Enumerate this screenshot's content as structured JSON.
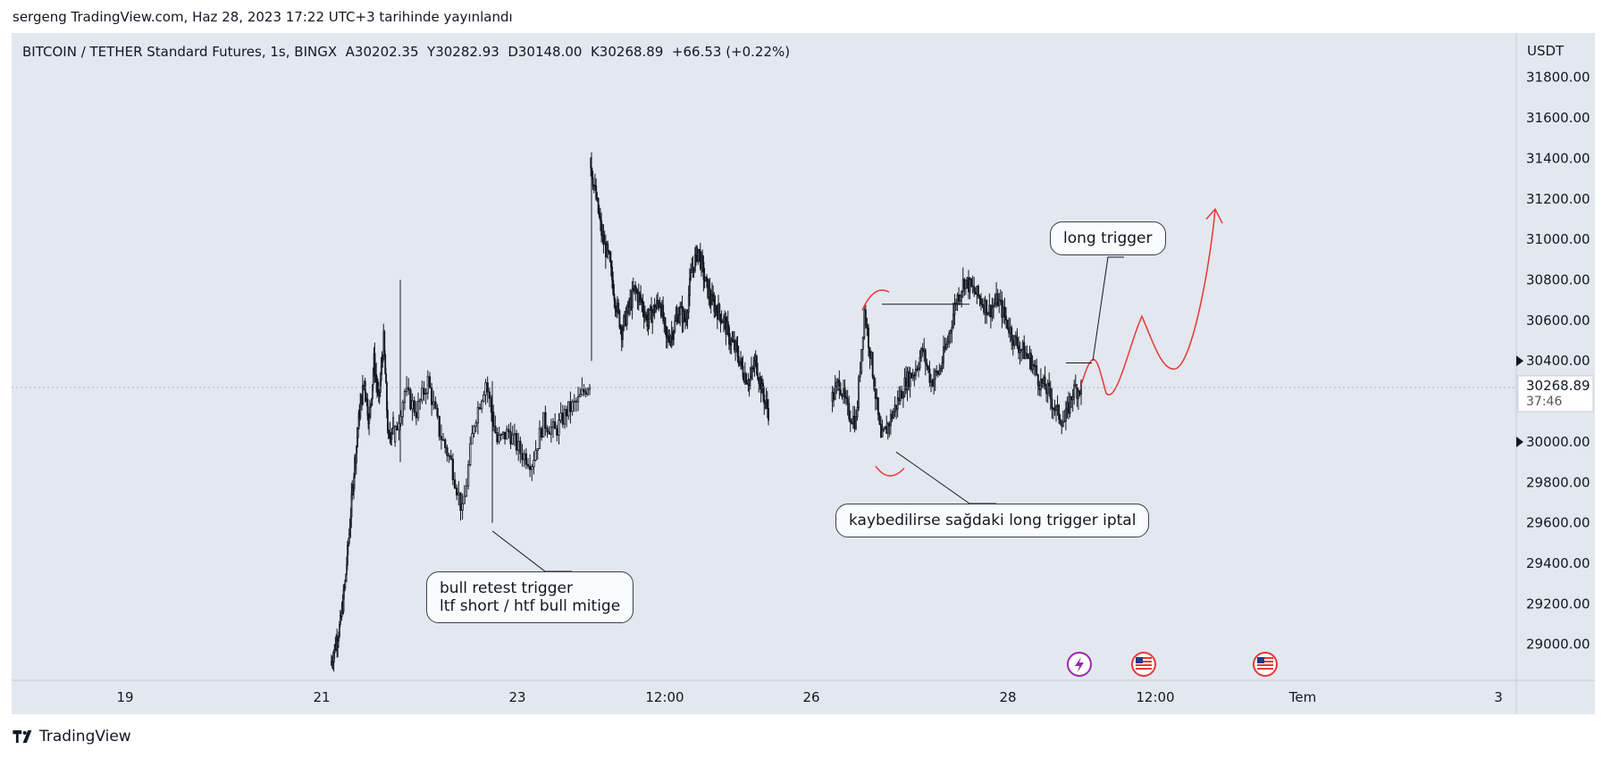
{
  "header": {
    "caption": "sergeng TradingView.com, Haz 28, 2023 17:22 UTC+3 tarihinde yayınlandı"
  },
  "symbol": {
    "title": "BITCOIN / TETHER Standard Futures, 1s, BINGX",
    "ohlc": "A30202.35  Y30282.93  D30148.00  K30268.89  +66.53 (+0.22%)"
  },
  "price_axis": {
    "currency": "USDT",
    "ticks": [
      "31800.00",
      "31600.00",
      "31400.00",
      "31200.00",
      "31000.00",
      "30800.00",
      "30600.00",
      "30400.00",
      "30000.00",
      "29800.00",
      "29600.00",
      "29400.00",
      "29200.00",
      "29000.00"
    ],
    "current_price": "30268.89",
    "countdown": "37:46"
  },
  "time_axis": {
    "labels": [
      "19",
      "21",
      "23",
      "12:00",
      "26",
      "28",
      "12:00",
      "Tem",
      "3"
    ]
  },
  "annotations": {
    "long_trigger": "long trigger",
    "lose_cancel": "kaybedilirse sağdaki long trigger iptal",
    "bull_retest_1": "bull retest trigger",
    "bull_retest_2": "ltf short / htf bull mitige"
  },
  "events": [
    {
      "icon": "lightning-icon",
      "color": "#9c27b0"
    },
    {
      "icon": "us-flag-icon",
      "color": "#e53935"
    },
    {
      "icon": "us-flag-icon",
      "color": "#e53935"
    }
  ],
  "footer": {
    "logo_text": "TradingView"
  },
  "colors": {
    "background": "#e3e7ef",
    "candle": "#131722",
    "projection": "#e53935",
    "grid": "#ffffff"
  },
  "chart_data": {
    "type": "candlestick",
    "title": "BITCOIN / TETHER Standard Futures, 1s, BINGX",
    "ylabel": "USDT",
    "ylim": [
      28840,
      31940
    ],
    "x_tick_labels": [
      "19",
      "21",
      "23",
      "12:00",
      "26",
      "28",
      "12:00",
      "Tem",
      "3"
    ],
    "last_close": 30268.89,
    "series": [
      {
        "segment": "rally_21",
        "start": "21",
        "prices": [
          28900,
          29000,
          29100,
          29300,
          29600,
          29900,
          30150,
          30300,
          30100,
          30400,
          30200,
          30500,
          30000,
          30100
        ]
      },
      {
        "segment": "range_22_23",
        "prices": [
          30000,
          30250,
          30150,
          30300,
          30050,
          29900,
          29650,
          30100,
          30300,
          30000,
          30050,
          29950,
          29900,
          30100,
          30050,
          30150,
          30200,
          30300
        ]
      },
      {
        "segment": "spike_24",
        "prices": [
          31400,
          31200,
          31000,
          30900,
          30700,
          30550,
          30650,
          30750,
          30700,
          30600,
          30650,
          30700,
          30500,
          30550,
          30650,
          30600,
          30850,
          30950,
          30800,
          30700,
          30650,
          30600,
          30500,
          30450,
          30350,
          30300,
          30400,
          30250,
          30150
        ]
      },
      {
        "segment": "range_26_27",
        "prices": [
          30200,
          30300,
          30150,
          30100,
          30650,
          30350,
          30000,
          30100,
          30200,
          30300,
          30350,
          30450,
          30300,
          30350,
          30500,
          30700,
          30800,
          30750,
          30700,
          30650,
          30700,
          30600,
          30500,
          30450,
          30400,
          30300,
          30250,
          30150,
          30100,
          30250,
          30268.89
        ]
      }
    ],
    "projection": {
      "label": "long trigger",
      "points": [
        30268,
        30450,
        30250,
        30600,
        30350,
        31100
      ]
    }
  }
}
